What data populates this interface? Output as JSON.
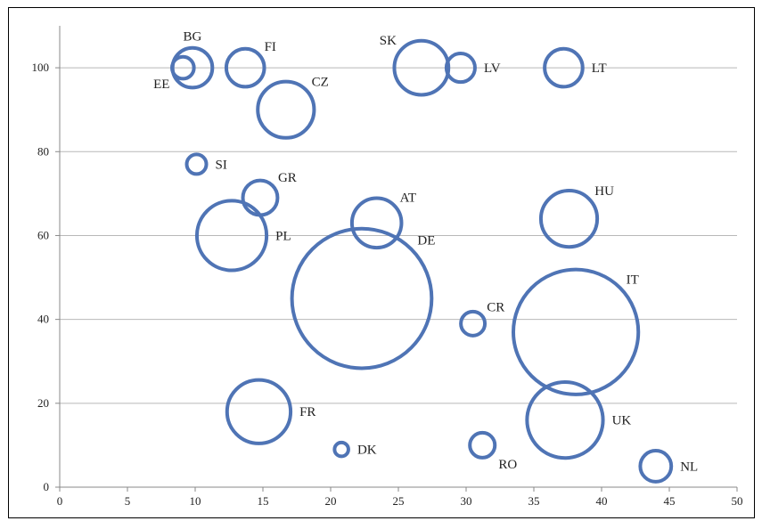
{
  "chart_data": {
    "type": "bubble",
    "title": "",
    "xlabel": "",
    "ylabel": "",
    "xlim": [
      0,
      50
    ],
    "ylim": [
      0,
      110
    ],
    "x_ticks": [
      0,
      5,
      10,
      15,
      20,
      25,
      30,
      35,
      40,
      45,
      50
    ],
    "y_ticks": [
      0,
      20,
      40,
      60,
      80,
      100
    ],
    "grid": "horizontal",
    "colors": {
      "bubble_stroke": "#4f74b5",
      "gridline": "#b8b8b8",
      "axis": "#888888"
    },
    "points": [
      {
        "label": "BG",
        "x": 9.8,
        "y": 100,
        "size": 3.3,
        "label_pos": "top"
      },
      {
        "label": "EE",
        "x": 9.1,
        "y": 100,
        "size": 1.0,
        "label_pos": "bottom-left"
      },
      {
        "label": "FI",
        "x": 13.7,
        "y": 100,
        "size": 3.0,
        "label_pos": "top-right"
      },
      {
        "label": "SK",
        "x": 26.7,
        "y": 100,
        "size": 6.1,
        "label_pos": "top-left"
      },
      {
        "label": "LV",
        "x": 29.6,
        "y": 100,
        "size": 1.7,
        "label_pos": "right"
      },
      {
        "label": "LT",
        "x": 37.2,
        "y": 100,
        "size": 3.0,
        "label_pos": "right"
      },
      {
        "label": "CZ",
        "x": 16.7,
        "y": 90,
        "size": 6.6,
        "label_pos": "top-right"
      },
      {
        "label": "SI",
        "x": 10.1,
        "y": 77,
        "size": 0.8,
        "label_pos": "right"
      },
      {
        "label": "GR",
        "x": 14.8,
        "y": 69,
        "size": 2.5,
        "label_pos": "top-right"
      },
      {
        "label": "PL",
        "x": 12.7,
        "y": 60,
        "size": 10.1,
        "label_pos": "right"
      },
      {
        "label": "AT",
        "x": 23.4,
        "y": 63,
        "size": 5.1,
        "label_pos": "top-right"
      },
      {
        "label": "DE",
        "x": 22.3,
        "y": 45,
        "size": 40.6,
        "label_pos": "top-right"
      },
      {
        "label": "HU",
        "x": 37.6,
        "y": 64,
        "size": 6.6,
        "label_pos": "top-right"
      },
      {
        "label": "CR",
        "x": 30.5,
        "y": 39,
        "size": 1.2,
        "label_pos": "top-right"
      },
      {
        "label": "IT",
        "x": 38.1,
        "y": 37,
        "size": 32.5,
        "label_pos": "top-right"
      },
      {
        "label": "FR",
        "x": 14.7,
        "y": 18,
        "size": 8.4,
        "label_pos": "right"
      },
      {
        "label": "UK",
        "x": 37.3,
        "y": 16,
        "size": 12.0,
        "label_pos": "right"
      },
      {
        "label": "DK",
        "x": 20.8,
        "y": 9,
        "size": 0.4,
        "label_pos": "right"
      },
      {
        "label": "RO",
        "x": 31.2,
        "y": 10,
        "size": 1.3,
        "label_pos": "bottom-right"
      },
      {
        "label": "NL",
        "x": 44.0,
        "y": 5,
        "size": 2.0,
        "label_pos": "right"
      }
    ]
  }
}
